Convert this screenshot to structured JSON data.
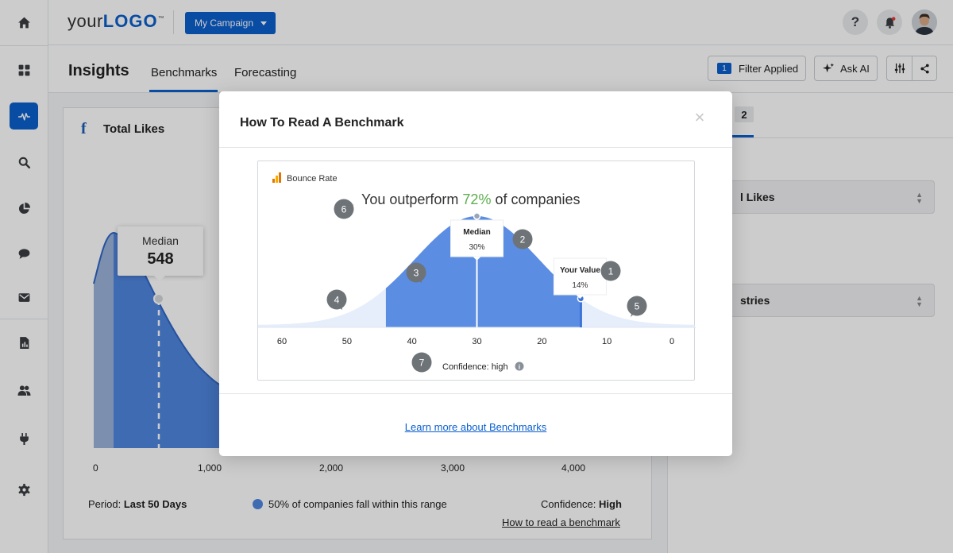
{
  "app": {
    "logo_text_light": "your",
    "logo_text_bold": "LOGO",
    "logo_tm": "™",
    "campaign_label": "My Campaign"
  },
  "colors": {
    "primary": "#0b5fce",
    "chart_blue": "#4f86e0",
    "positive": "#5cae4e"
  },
  "sidebar": {
    "items": [
      {
        "icon": "home-icon"
      },
      {
        "icon": "dashboard-grid-icon"
      },
      {
        "icon": "insights-pulse-icon",
        "active": true
      },
      {
        "icon": "search-icon"
      },
      {
        "icon": "pie-chart-icon"
      },
      {
        "icon": "chat-bubble-icon"
      },
      {
        "icon": "mail-icon"
      },
      {
        "icon": "report-icon"
      },
      {
        "icon": "users-icon"
      },
      {
        "icon": "plug-icon"
      },
      {
        "icon": "settings-gear-icon"
      }
    ]
  },
  "topbar": {
    "icons": [
      "help-icon",
      "notification-bell-icon",
      "user-avatar"
    ]
  },
  "header": {
    "title": "Insights",
    "tabs": [
      {
        "label": "Benchmarks",
        "active": true
      },
      {
        "label": "Forecasting"
      }
    ],
    "filter_count": "1",
    "filter_label": "Filter Applied",
    "ask_ai_label": "Ask AI"
  },
  "card": {
    "title": "Total Likes",
    "median_label": "Median",
    "median_value": "548",
    "x_ticks": [
      "0",
      "1,000",
      "2,000",
      "3,000",
      "4,000"
    ],
    "period_label": "Period:",
    "period_value": "Last 50 Days",
    "legend_text": "50% of companies fall within this range",
    "confidence_label": "Confidence:",
    "confidence_value": "High",
    "how_to_link": "How to read a benchmark"
  },
  "right_panel": {
    "tab_number": "2",
    "select1_text": "l Likes",
    "select2_text": "stries"
  },
  "modal": {
    "title": "How To Read A Benchmark",
    "close_glyph": "×",
    "learn_more": "Learn more about Benchmarks"
  },
  "chart_data": {
    "type": "area",
    "title": "Bounce Rate",
    "headline_prefix": "You outperform ",
    "headline_percent": "72%",
    "headline_suffix": " of companies",
    "x_ticks": [
      "60",
      "50",
      "40",
      "30",
      "20",
      "10",
      "0"
    ],
    "xlim": [
      60,
      0
    ],
    "median": {
      "label": "Median",
      "value": "30%",
      "x": 30
    },
    "your_value": {
      "label": "Your Value",
      "value": "14%",
      "x": 14
    },
    "highlight_range": [
      44,
      14
    ],
    "confidence_label": "Confidence: high",
    "callouts": [
      "1",
      "2",
      "3",
      "4",
      "5",
      "6",
      "7"
    ]
  }
}
